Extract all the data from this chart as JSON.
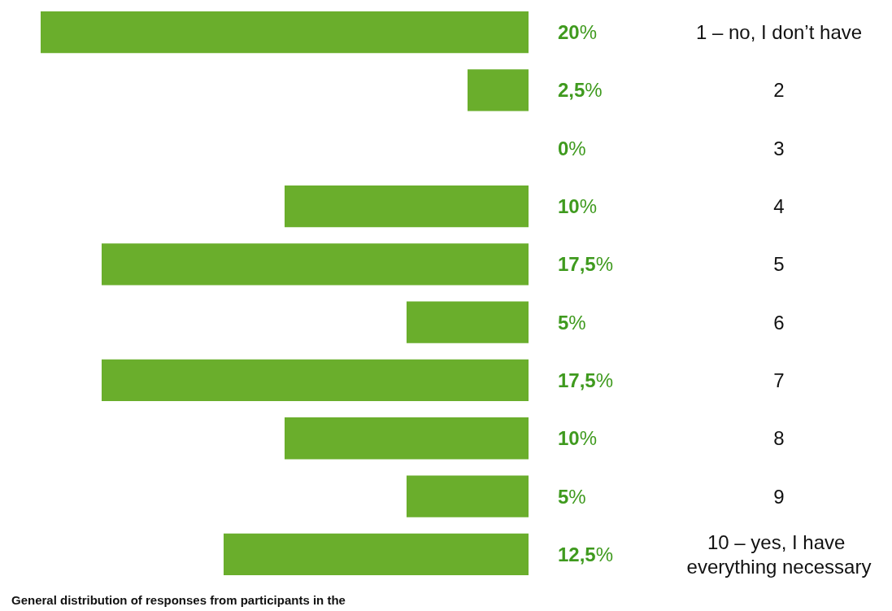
{
  "chart_data": {
    "type": "bar",
    "orientation": "horizontal",
    "categories": [
      "1 – no, I don’t have",
      "2",
      "3",
      "4",
      "5",
      "6",
      "7",
      "8",
      "9",
      "10 – yes, I have everything necessary"
    ],
    "values": [
      20,
      2.5,
      0,
      10,
      17.5,
      5,
      17.5,
      10,
      5,
      12.5
    ],
    "value_labels": [
      "20%",
      "2,5%",
      "0%",
      "10%",
      "17,5%",
      "5%",
      "17,5%",
      "10%",
      "5%",
      "12,5%"
    ],
    "color": "#6aae2c",
    "annotations": [
      "General distribution of responses from participants in the"
    ]
  }
}
